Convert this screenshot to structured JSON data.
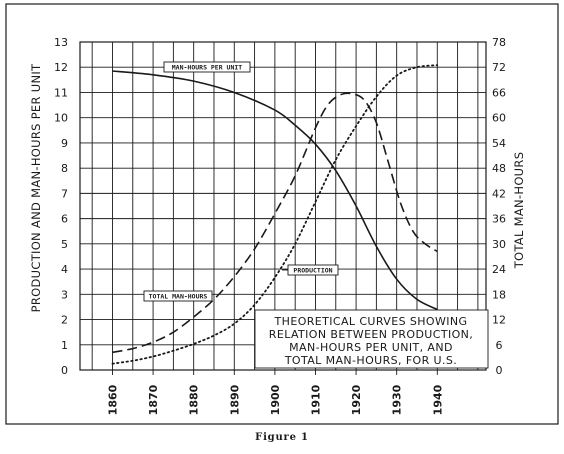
{
  "chart_data": {
    "type": "line",
    "title_lines": [
      "THEORETICAL CURVES SHOWING",
      "RELATION BETWEEN PRODUCTION,",
      "MAN-HOURS PER UNIT, AND",
      "TOTAL MAN-HOURS, FOR U.S."
    ],
    "caption": "Figure 1",
    "ylabel_left": "PRODUCTION AND MAN-HOURS PER UNIT",
    "ylabel_right": "TOTAL MAN-HOURS",
    "x_ticks": [
      "1860",
      "1870",
      "1880",
      "1890",
      "1900",
      "1910",
      "1920",
      "1930",
      "1940"
    ],
    "y_left_ticks": [
      "0",
      "1",
      "2",
      "3",
      "4",
      "5",
      "6",
      "7",
      "8",
      "9",
      "10",
      "11",
      "12",
      "13"
    ],
    "y_right_ticks": [
      "0",
      "6",
      "12",
      "18",
      "24",
      "30",
      "36",
      "42",
      "48",
      "54",
      "60",
      "66",
      "72",
      "78"
    ],
    "xlim": [
      1852,
      1952
    ],
    "ylim_left": [
      0,
      13
    ],
    "ylim_right": [
      0,
      78
    ],
    "grid": true,
    "series": [
      {
        "name": "MAN-HOURS PER UNIT",
        "style": "solid",
        "axis": "left",
        "x": [
          1860,
          1870,
          1880,
          1890,
          1900,
          1905,
          1910,
          1915,
          1920,
          1925,
          1930,
          1935,
          1940
        ],
        "y": [
          11.85,
          11.7,
          11.45,
          11.0,
          10.3,
          9.7,
          8.95,
          7.9,
          6.5,
          4.9,
          3.6,
          2.8,
          2.4
        ]
      },
      {
        "name": "PRODUCTION",
        "style": "dashed",
        "axis": "left",
        "x": [
          1860,
          1865,
          1870,
          1875,
          1880,
          1885,
          1890,
          1895,
          1900,
          1905,
          1910,
          1913,
          1916,
          1919,
          1922,
          1925,
          1928,
          1931,
          1934,
          1937,
          1940
        ],
        "y": [
          0.7,
          0.85,
          1.1,
          1.5,
          2.1,
          2.8,
          3.7,
          4.8,
          6.2,
          7.7,
          9.6,
          10.5,
          10.9,
          10.95,
          10.7,
          9.8,
          8.2,
          6.6,
          5.5,
          5.0,
          4.7
        ]
      },
      {
        "name": "TOTAL MAN-HOURS",
        "style": "dotted",
        "axis": "right",
        "x": [
          1860,
          1865,
          1870,
          1875,
          1880,
          1885,
          1890,
          1895,
          1900,
          1905,
          1910,
          1915,
          1920,
          1925,
          1930,
          1935,
          1940
        ],
        "y": [
          1.5,
          2.2,
          3.2,
          4.6,
          6.2,
          8.2,
          11.0,
          15.5,
          22.0,
          30.0,
          40.0,
          50.0,
          58.0,
          65.0,
          70.0,
          72.0,
          72.5
        ]
      }
    ],
    "annotations": [
      {
        "text": "MAN-HOURS PER UNIT",
        "series": "MAN-HOURS PER UNIT"
      },
      {
        "text": "PRODUCTION",
        "series": "PRODUCTION"
      },
      {
        "text": "TOTAL MAN-HOURS",
        "series": "TOTAL MAN-HOURS"
      }
    ]
  }
}
